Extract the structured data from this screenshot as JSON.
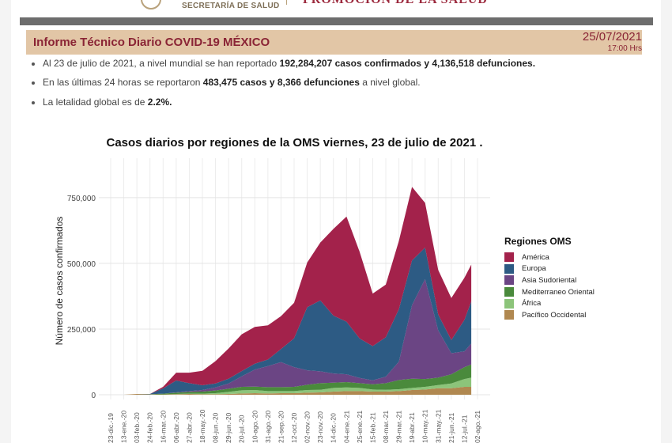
{
  "header": {
    "logo_subtitle": "SECRETARÍA DE SALUD",
    "logo_title": "PROMOCIÓN DE LA SALUD",
    "report_title": "Informe Técnico Diario COVID-19 MÉXICO",
    "date": "25/07/2021",
    "time": "17:00 Hrs"
  },
  "bullets": [
    {
      "pre": "Al 23 de julio de 2021, a nivel mundial se han reportado ",
      "bold": "192,284,207 casos confirmados y 4,136,518 defunciones.",
      "post": ""
    },
    {
      "pre": "En las últimas 24 horas se reportaron ",
      "bold": "483,475 casos y 8,366 defunciones",
      "post": " a nivel global."
    },
    {
      "pre": "La letalidad global es de ",
      "bold": "2.2%.",
      "post": ""
    }
  ],
  "chart_data": {
    "type": "area",
    "stacked": true,
    "title": "Casos diarios por regiones de la OMS viernes, 23 de julio de 2021 .",
    "ylabel": "Número de casos confirmados",
    "xlabel": "",
    "ylim": [
      0,
      900000
    ],
    "yticks": [
      0,
      250000,
      500000,
      750000
    ],
    "ytick_labels": [
      "0",
      "250,000",
      "500,000",
      "750,000"
    ],
    "grid": true,
    "legend_title": "Regiones OMS",
    "legend_position": "right",
    "xtick_dates": [
      "2019-12-23",
      "2020-01-13",
      "2020-02-03",
      "2020-02-24",
      "2020-03-16",
      "2020-04-06",
      "2020-04-27",
      "2020-05-18",
      "2020-06-08",
      "2020-06-29",
      "2020-07-20",
      "2020-08-10",
      "2020-08-31",
      "2020-09-21",
      "2020-10-12",
      "2020-11-02",
      "2020-11-23",
      "2020-12-14",
      "2021-01-04",
      "2021-01-25",
      "2021-02-15",
      "2021-03-08",
      "2021-03-29",
      "2021-04-19",
      "2021-05-10",
      "2021-05-31",
      "2021-06-21",
      "2021-07-12",
      "2021-08-02"
    ],
    "xtick_labels": [
      "23-dic.-19",
      "13-ene.-20",
      "03-feb.-20",
      "24-feb.-20",
      "16-mar.-20",
      "06-abr.-20",
      "27-abr.-20",
      "18-may.-20",
      "08-jun.-20",
      "29-jun.-20",
      "20-jul.-20",
      "10-ago.-20",
      "31-ago.-20",
      "21-sep.-20",
      "12-oct.-20",
      "02-nov.-20",
      "23-nov.-20",
      "14-dic.-20",
      "04-ene.-21",
      "25-ene.-21",
      "15-feb.-21",
      "08-mar.-21",
      "29-mar.-21",
      "19-abr.-21",
      "10-may.-21",
      "31-may.-21",
      "21-jun.-21",
      "12-jul.-21",
      "02-ago.-21"
    ],
    "x": [
      "2019-12-23",
      "2020-01-13",
      "2020-02-03",
      "2020-02-24",
      "2020-03-16",
      "2020-04-06",
      "2020-04-27",
      "2020-05-18",
      "2020-06-08",
      "2020-06-29",
      "2020-07-20",
      "2020-08-10",
      "2020-08-31",
      "2020-09-21",
      "2020-10-12",
      "2020-11-02",
      "2020-11-23",
      "2020-12-14",
      "2021-01-04",
      "2021-01-25",
      "2021-02-15",
      "2021-03-08",
      "2021-03-29",
      "2021-04-19",
      "2021-05-10",
      "2021-05-31",
      "2021-06-21",
      "2021-07-12",
      "2021-07-23"
    ],
    "series": [
      {
        "name": "Pacífico Occidental",
        "color": "#b08850",
        "values": [
          0,
          0,
          3000,
          1000,
          1000,
          2000,
          3000,
          2000,
          2000,
          3000,
          5000,
          6000,
          5000,
          6000,
          6000,
          8000,
          9000,
          12000,
          14000,
          14000,
          12000,
          12000,
          14000,
          18000,
          20000,
          25000,
          25000,
          30000,
          30000
        ]
      },
      {
        "name": "África",
        "color": "#8cc47a",
        "values": [
          0,
          0,
          0,
          0,
          0,
          1000,
          1000,
          2000,
          4000,
          8000,
          12000,
          12000,
          9000,
          8000,
          8000,
          10000,
          10000,
          14000,
          14000,
          12000,
          8000,
          7000,
          7000,
          8000,
          10000,
          12000,
          18000,
          30000,
          35000
        ]
      },
      {
        "name": "Mediterraneo Oriental",
        "color": "#4a8a3c",
        "values": [
          0,
          0,
          0,
          1000,
          3000,
          5000,
          7000,
          8000,
          10000,
          12000,
          13000,
          13000,
          15000,
          15000,
          16000,
          20000,
          25000,
          20000,
          20000,
          18000,
          20000,
          25000,
          35000,
          35000,
          30000,
          28000,
          35000,
          45000,
          50000
        ]
      },
      {
        "name": "Asia Sudoriental",
        "color": "#6b4584",
        "values": [
          0,
          0,
          0,
          0,
          0,
          1000,
          3000,
          6000,
          12000,
          20000,
          40000,
          65000,
          80000,
          95000,
          75000,
          55000,
          45000,
          35000,
          30000,
          20000,
          15000,
          25000,
          70000,
          280000,
          380000,
          180000,
          80000,
          60000,
          80000
        ]
      },
      {
        "name": "Europa",
        "color": "#2d5b84",
        "values": [
          0,
          0,
          0,
          1000,
          20000,
          45000,
          30000,
          18000,
          15000,
          18000,
          20000,
          22000,
          25000,
          50000,
          110000,
          240000,
          270000,
          220000,
          200000,
          150000,
          130000,
          150000,
          200000,
          170000,
          120000,
          60000,
          50000,
          120000,
          160000
        ]
      },
      {
        "name": "América",
        "color": "#a3224b",
        "values": [
          0,
          0,
          0,
          0,
          6000,
          30000,
          40000,
          55000,
          85000,
          115000,
          140000,
          140000,
          130000,
          125000,
          135000,
          170000,
          220000,
          330000,
          400000,
          330000,
          200000,
          200000,
          260000,
          280000,
          170000,
          170000,
          160000,
          160000,
          140000
        ]
      }
    ]
  },
  "legend_order": [
    "América",
    "Europa",
    "Asia Sudoriental",
    "Mediterraneo Oriental",
    "África",
    "Pacífico Occidental"
  ]
}
